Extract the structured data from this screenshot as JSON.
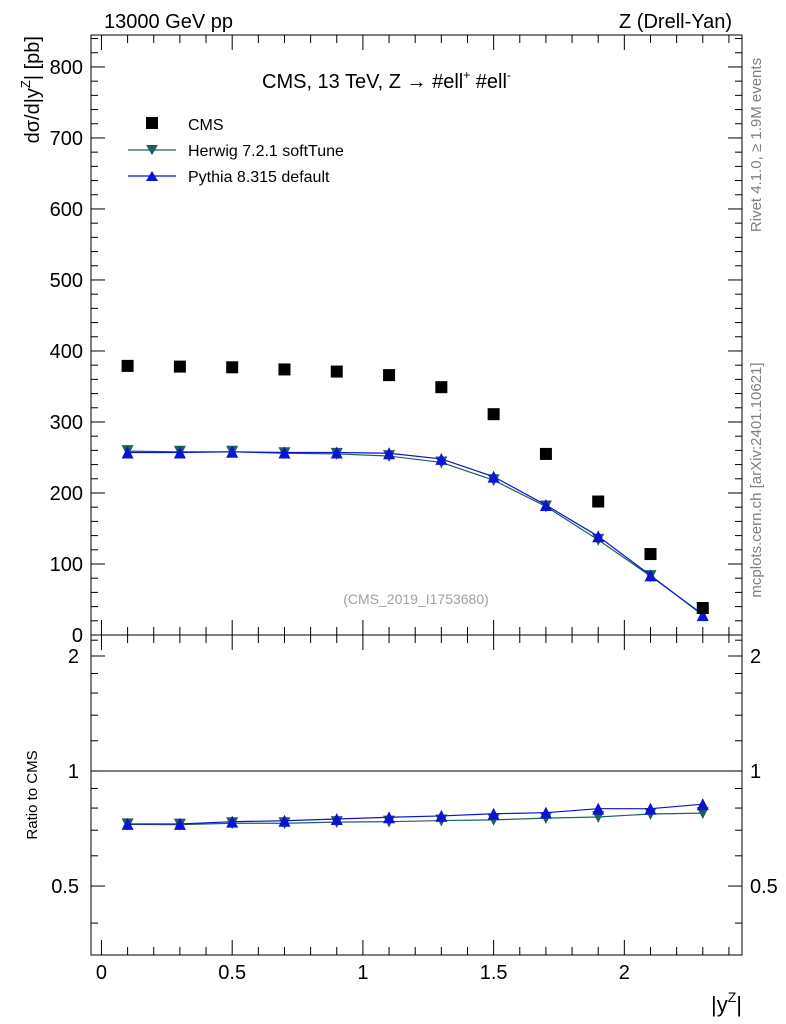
{
  "header": {
    "left": "13000 GeV pp",
    "right": "Z (Drell-Yan)"
  },
  "side_labels": {
    "rivet": "Rivet 4.1.0, ≥ 1.9M events",
    "mcplots": "mcplots.cern.ch [arXiv:2401.10621]"
  },
  "colors": {
    "data": "#000000",
    "herwig": "#1f5f5f",
    "pythia": "#0a14d2",
    "watermark": "#a0a0a0"
  },
  "chart_data": [
    {
      "id": "main",
      "type": "scatter",
      "title": "CMS, 13 TeV, Z →  #ell+ #ell-",
      "title_parts": {
        "main": "CMS, 13 TeV, Z →  #ell",
        "sup1": "+",
        "mid": " #ell",
        "sup2": "-"
      },
      "watermark": "(CMS_2019_I1753680)",
      "ylabel": "dσ/d|yZ| [pb]",
      "ylabel_parts": {
        "main": "dσ/d|y",
        "sup": "Z",
        "end": "| [pb]"
      },
      "xlabel": "|yZ|",
      "xlabel_parts": {
        "main": "|y",
        "sup": "Z",
        "end": "|"
      },
      "xlim": [
        -0.04,
        2.45
      ],
      "ylim": [
        0,
        845
      ],
      "yticks": [
        0,
        100,
        200,
        300,
        400,
        500,
        600,
        700,
        800
      ],
      "ytick_labels": [
        "0",
        "100",
        "200",
        "300",
        "400",
        "500",
        "600",
        "700",
        "800"
      ],
      "x": [
        0.1,
        0.3,
        0.5,
        0.7,
        0.9,
        1.1,
        1.3,
        1.5,
        1.7,
        1.9,
        2.1,
        2.3
      ],
      "legend": [
        "CMS",
        "Herwig 7.2.1 softTune",
        "Pythia 8.315 default"
      ],
      "series": [
        {
          "name": "CMS",
          "marker": "square",
          "values": [
            379,
            378,
            377,
            374,
            371,
            366,
            349,
            311,
            255,
            188,
            114,
            38
          ]
        },
        {
          "name": "Herwig 7.2.1 softTune",
          "marker": "triangle-down",
          "values": [
            259,
            258,
            258,
            256,
            255,
            252,
            243,
            218,
            181,
            134,
            83,
            29
          ]
        },
        {
          "name": "Pythia 8.315 default",
          "marker": "triangle-up",
          "values": [
            257,
            257,
            258,
            257,
            257,
            256,
            248,
            223,
            183,
            139,
            84,
            28
          ]
        }
      ]
    },
    {
      "id": "ratio",
      "type": "line",
      "ylabel": "Ratio to CMS",
      "xlim": [
        -0.04,
        2.45
      ],
      "ylim": [
        0.33,
        2.27
      ],
      "yscale": "log",
      "yticks": [
        0.5,
        1,
        2
      ],
      "ytick_labels": [
        "0.5",
        "1",
        "2"
      ],
      "xticks": [
        0,
        0.5,
        1,
        1.5,
        2
      ],
      "xtick_labels": [
        "0",
        "0.5",
        "1",
        "1.5",
        "2"
      ],
      "x": [
        0.1,
        0.3,
        0.5,
        0.7,
        0.9,
        1.1,
        1.3,
        1.5,
        1.7,
        1.9,
        2.1,
        2.3
      ],
      "series": [
        {
          "name": "Herwig 7.2.1 softTune",
          "marker": "triangle-down",
          "values": [
            0.725,
            0.724,
            0.73,
            0.73,
            0.735,
            0.737,
            0.742,
            0.745,
            0.753,
            0.758,
            0.772,
            0.776
          ]
        },
        {
          "name": "Pythia 8.315 default",
          "marker": "triangle-up",
          "values": [
            0.727,
            0.727,
            0.737,
            0.741,
            0.749,
            0.757,
            0.763,
            0.773,
            0.778,
            0.797,
            0.797,
            0.819
          ]
        }
      ]
    }
  ]
}
